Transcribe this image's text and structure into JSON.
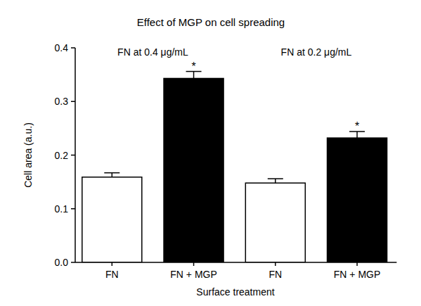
{
  "chart_data": {
    "type": "bar",
    "title": "Effect of MGP on cell spreading",
    "x_label": "Surface treatment",
    "y_label": "Cell area (a.u.)",
    "categories": [
      "FN",
      "FN + MGP",
      "FN",
      "FN + MGP"
    ],
    "values": [
      0.159,
      0.343,
      0.148,
      0.232
    ],
    "errors": [
      0.008,
      0.013,
      0.008,
      0.012
    ],
    "colors": [
      "#ffffff",
      "#000000",
      "#ffffff",
      "#000000"
    ],
    "ylim": [
      0,
      0.4
    ],
    "yticks": [
      {
        "value": 0,
        "label": "0.0"
      },
      {
        "value": 0.1,
        "label": "0.1"
      },
      {
        "value": 0.2,
        "label": "0.2"
      },
      {
        "value": 0.3,
        "label": "0.3"
      },
      {
        "value": 0.4,
        "label": "0.4"
      }
    ],
    "grid": false,
    "annotations": [
      {
        "text": "FN at 0.4 μg/mL",
        "categories": [
          0,
          1
        ]
      },
      {
        "text": "FN at 0.2 μg/mL",
        "categories": [
          2,
          3
        ]
      },
      {
        "text": "*",
        "categories": [
          1
        ]
      },
      {
        "text": "*",
        "categories": [
          3
        ]
      }
    ]
  }
}
